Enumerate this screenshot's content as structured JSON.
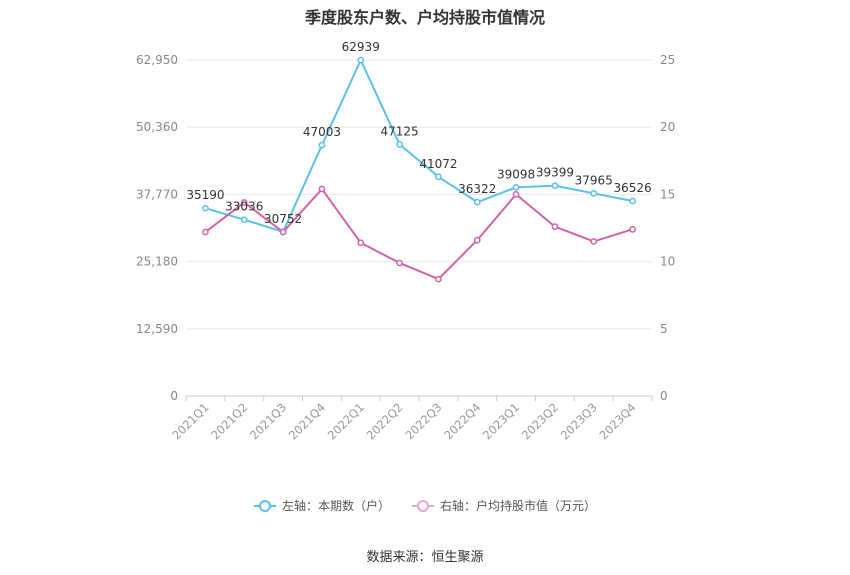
{
  "title": "季度股东户数、户均持股市值情况",
  "source": "数据来源：恒生聚源",
  "chart_data": {
    "type": "line",
    "title": "季度股东户数、户均持股市值情况",
    "categories": [
      "2021Q1",
      "2021Q2",
      "2021Q3",
      "2021Q4",
      "2022Q1",
      "2022Q2",
      "2022Q3",
      "2022Q4",
      "2023Q1",
      "2023Q2",
      "2023Q3",
      "2023Q4"
    ],
    "y_left": {
      "ticks": [
        "0",
        "12,590",
        "25,180",
        "37,770",
        "50,360",
        "62,950"
      ],
      "min": 0,
      "max": 62950
    },
    "y_right": {
      "ticks": [
        "0",
        "5",
        "10",
        "15",
        "20",
        "25"
      ],
      "min": 0,
      "max": 25
    },
    "grid": true,
    "legend_position": "bottom",
    "series": [
      {
        "name": "左轴：本期数（户）",
        "axis": "left",
        "color": "#5bc0eb",
        "values": [
          35190,
          33036,
          30752,
          47003,
          62939,
          47125,
          41072,
          36322,
          39098,
          39399,
          37965,
          36526
        ],
        "labels": [
          "35190",
          "33036",
          "30752",
          "47003",
          "62939",
          "47125",
          "41072",
          "36322",
          "39098",
          "39399",
          "37965",
          "36526"
        ]
      },
      {
        "name": "右轴：户均持股市值（万元）",
        "axis": "right",
        "color": "#d063a7",
        "values": [
          12.2,
          14.4,
          12.2,
          15.4,
          11.4,
          9.9,
          8.7,
          11.6,
          15.0,
          12.6,
          11.5,
          12.4
        ]
      }
    ]
  }
}
